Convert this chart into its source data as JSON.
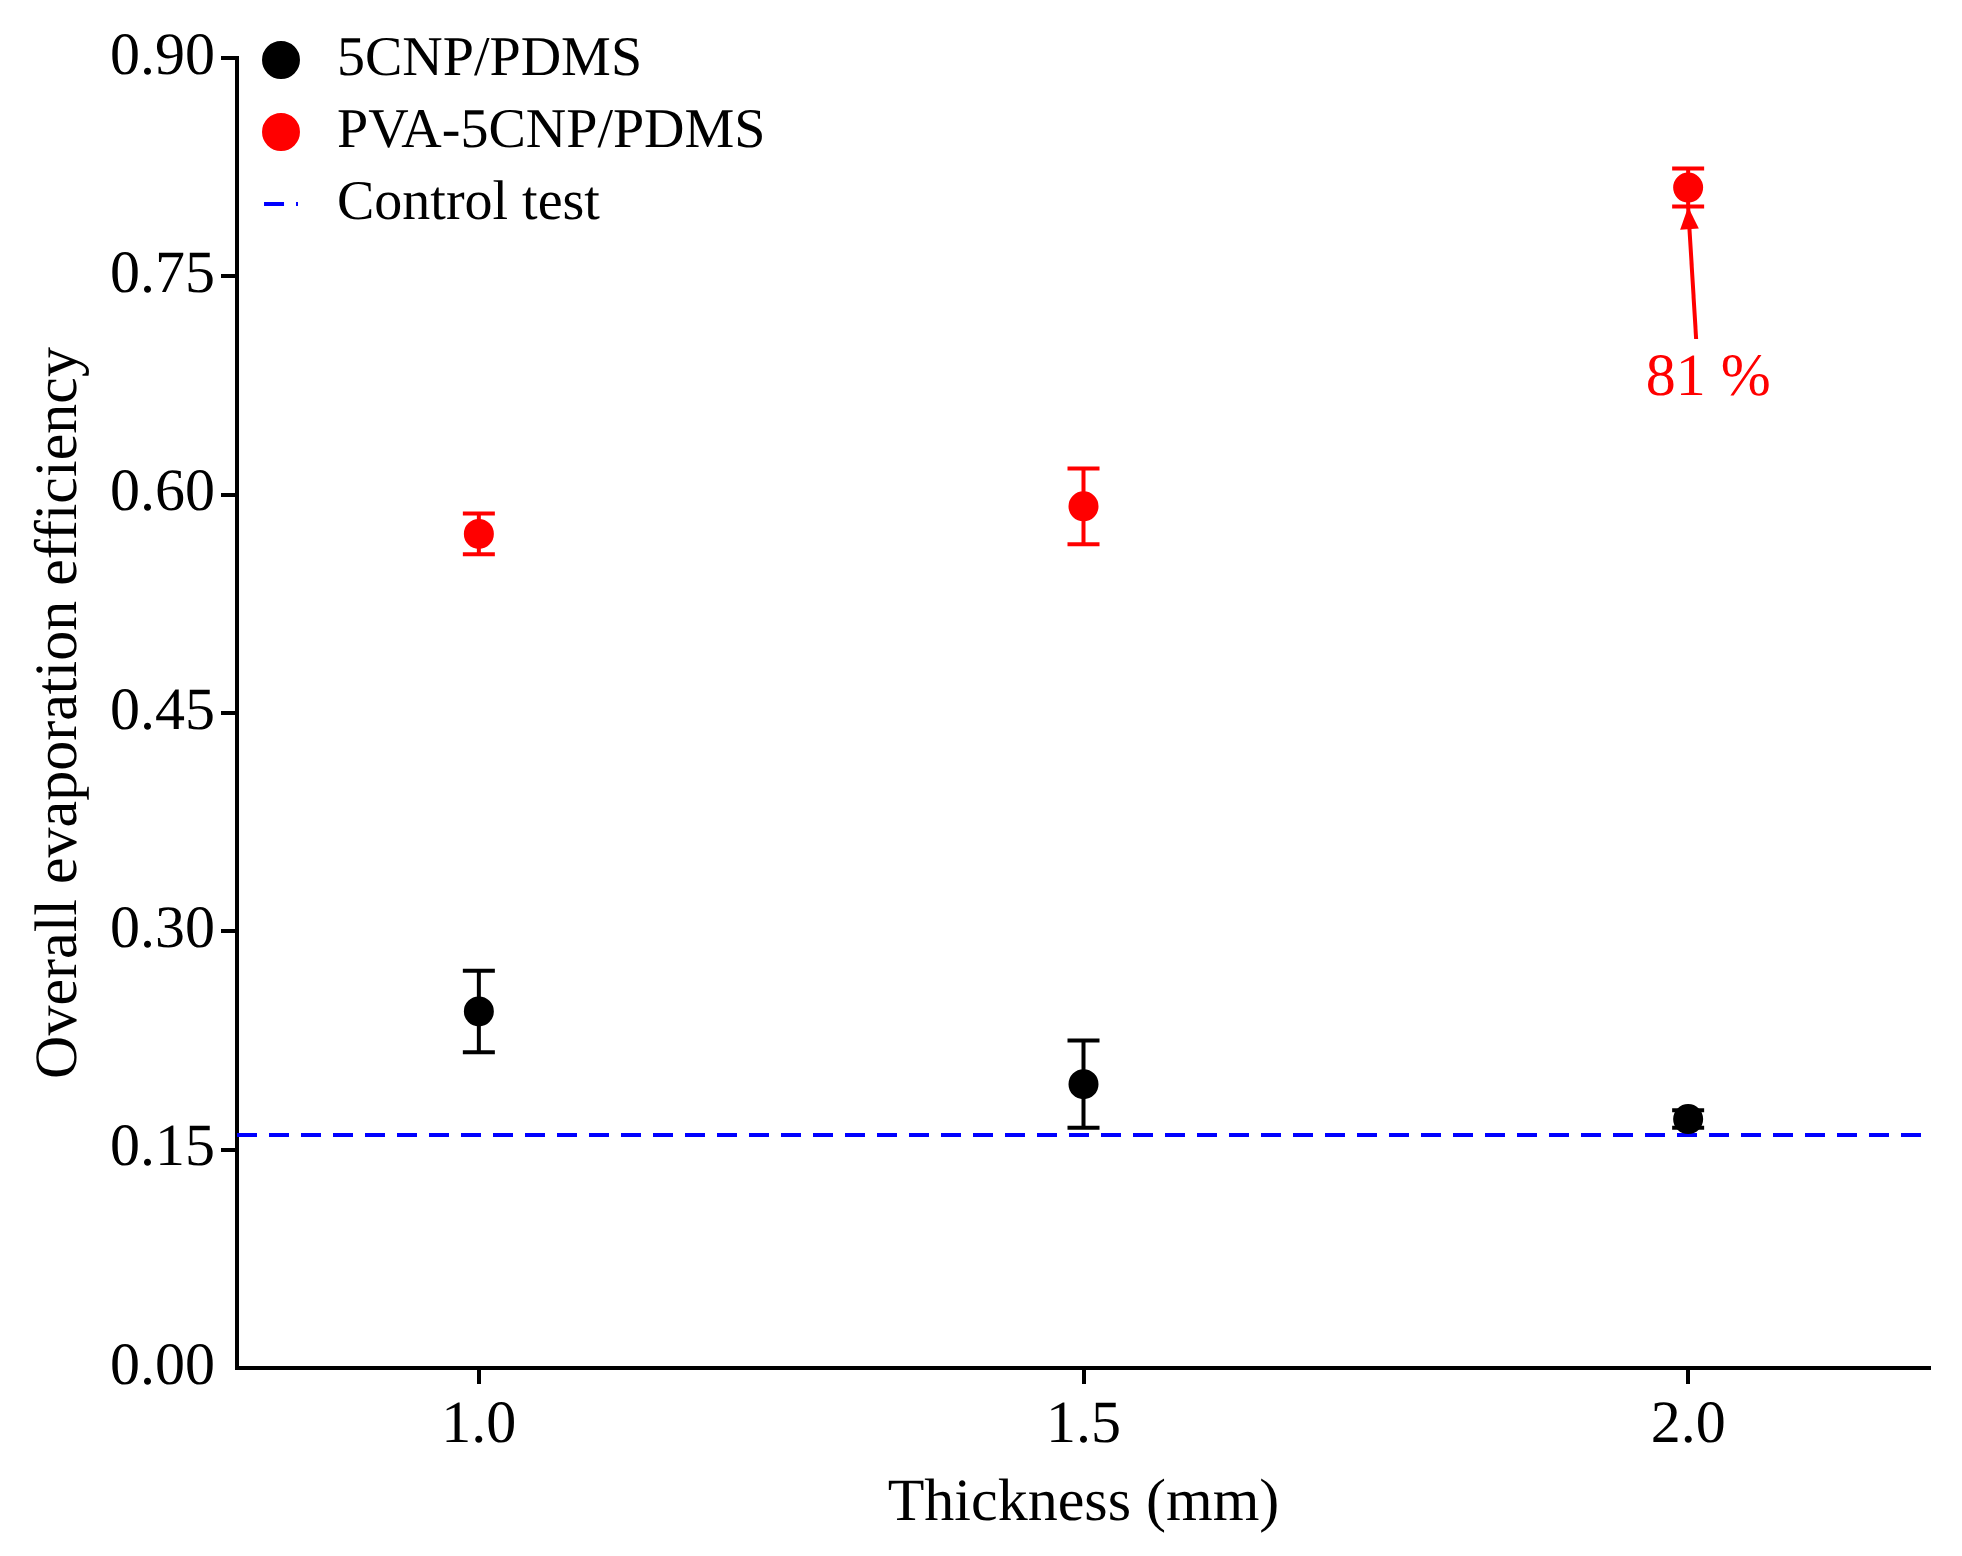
{
  "chart_data": {
    "type": "scatter",
    "xlabel": "Thickness (mm)",
    "ylabel": "Overall evaporation efficiency",
    "x": [
      1.0,
      1.5,
      2.0
    ],
    "series": [
      {
        "name": "5CNP/PDMS",
        "color": "#000000",
        "values": [
          0.245,
          0.195,
          0.171
        ],
        "errors": [
          0.028,
          0.03,
          0.006
        ]
      },
      {
        "name": "PVA-5CNP/PDMS",
        "color": "#ff0000",
        "values": [
          0.573,
          0.592,
          0.811
        ],
        "errors": [
          0.014,
          0.026,
          0.013
        ]
      }
    ],
    "ref_lines": [
      {
        "axis": "y",
        "value": 0.16,
        "label": "Control test",
        "color": "#0000ff",
        "line_style": "dashed"
      }
    ],
    "annotations": [
      {
        "text": "81 %",
        "x": 2.0,
        "y": 0.81
      }
    ],
    "xlim": [
      0.8,
      2.2
    ],
    "xticks": [
      {
        "value": 1,
        "label": "1.0"
      },
      {
        "value": 1.5,
        "label": "1.5"
      },
      {
        "value": 2,
        "label": "2.0"
      }
    ],
    "ylim": [
      0,
      0.9
    ],
    "yticks": [
      {
        "value": 0,
        "label": "0.00"
      },
      {
        "value": 0.15,
        "label": "0.15"
      },
      {
        "value": 0.3,
        "label": "0.30"
      },
      {
        "value": 0.45,
        "label": "0.45"
      },
      {
        "value": 0.6,
        "label": "0.60"
      },
      {
        "value": 0.75,
        "label": "0.75"
      },
      {
        "value": 0.9,
        "label": "0.90"
      }
    ],
    "legend": "top left",
    "grid": false,
    "marker": "circle"
  }
}
